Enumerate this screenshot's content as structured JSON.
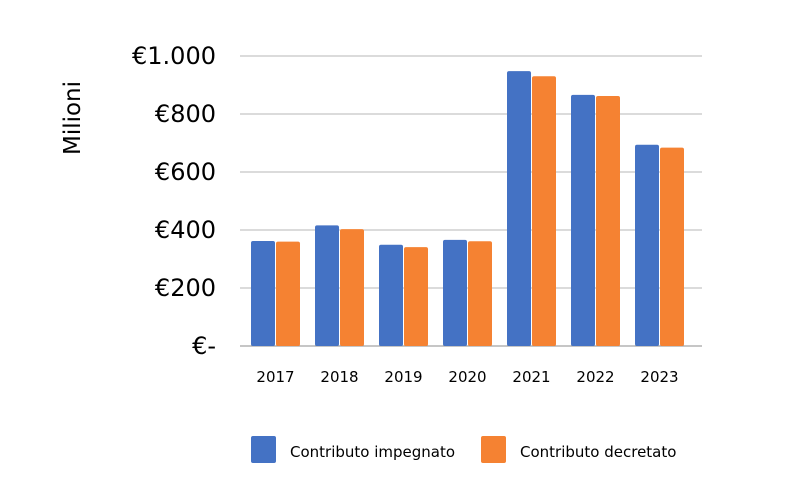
{
  "chart_data": {
    "type": "bar",
    "title": "",
    "xlabel": "",
    "ylabel": "Milioni",
    "categories": [
      "2017",
      "2018",
      "2019",
      "2020",
      "2021",
      "2022",
      "2023"
    ],
    "series": [
      {
        "name": "Contributo impegnato",
        "color": "#4472C4",
        "values": [
          362,
          416,
          349,
          366,
          948,
          866,
          694
        ]
      },
      {
        "name": "Contributo decretato",
        "color": "#F58232",
        "values": [
          360,
          403,
          341,
          361,
          930,
          862,
          684
        ]
      }
    ],
    "ylim": [
      0,
      1000
    ],
    "yticks": [
      0,
      200,
      400,
      600,
      800,
      1000
    ],
    "ytick_labels": [
      "€-",
      "€200",
      "€400",
      "€600",
      "€800",
      "€1.000"
    ],
    "grid": true,
    "legend_position": "bottom"
  }
}
